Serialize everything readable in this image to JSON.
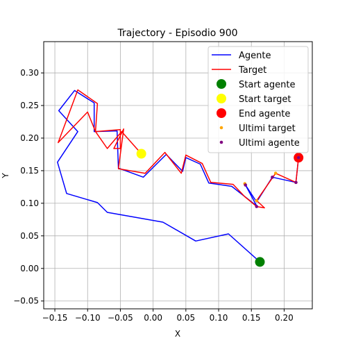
{
  "chart_data": {
    "type": "line",
    "title": "Trajectory - Episodio 900",
    "xlabel": "X",
    "ylabel": "Y",
    "xlim": [
      -0.167,
      0.243
    ],
    "ylim": [
      -0.062,
      0.348
    ],
    "xticks": [
      -0.15,
      -0.1,
      -0.05,
      0.0,
      0.05,
      0.1,
      0.15,
      0.2
    ],
    "xtick_labels": [
      "−0.15",
      "−0.10",
      "−0.05",
      "0.00",
      "0.05",
      "0.10",
      "0.15",
      "0.20"
    ],
    "yticks": [
      -0.05,
      0.0,
      0.05,
      0.1,
      0.15,
      0.2,
      0.25,
      0.3
    ],
    "ytick_labels": [
      "−0.05",
      "0.00",
      "0.05",
      "0.10",
      "0.15",
      "0.20",
      "0.25",
      "0.30"
    ],
    "grid": true,
    "legend_position": "top-right",
    "series": [
      {
        "name": "Agente",
        "kind": "line",
        "color": "#0000ff",
        "x": [
          0.163,
          0.115,
          0.065,
          0.015,
          -0.07,
          -0.085,
          -0.132,
          -0.146,
          -0.115,
          -0.144,
          -0.12,
          -0.09,
          -0.09,
          -0.055,
          -0.053,
          -0.015,
          0.02,
          0.045,
          0.05,
          0.072,
          0.085,
          0.12,
          0.158,
          0.141,
          0.158,
          0.182,
          0.218,
          0.222
        ],
        "y": [
          0.01,
          0.053,
          0.042,
          0.071,
          0.086,
          0.101,
          0.115,
          0.163,
          0.21,
          0.242,
          0.273,
          0.254,
          0.21,
          0.211,
          0.154,
          0.14,
          0.175,
          0.149,
          0.17,
          0.16,
          0.131,
          0.126,
          0.096,
          0.128,
          0.102,
          0.14,
          0.132,
          0.17
        ]
      },
      {
        "name": "Target",
        "kind": "line",
        "color": "#ff0000",
        "x": [
          -0.018,
          -0.048,
          -0.07,
          -0.088,
          -0.1,
          -0.145,
          -0.115,
          -0.085,
          -0.088,
          -0.05,
          -0.05,
          -0.06,
          -0.045,
          -0.053,
          -0.012,
          0.018,
          0.043,
          0.05,
          0.075,
          0.088,
          0.122,
          0.14,
          0.158,
          0.17,
          0.158,
          0.187,
          0.218,
          0.222
        ],
        "y": [
          0.176,
          0.21,
          0.184,
          0.21,
          0.24,
          0.193,
          0.274,
          0.253,
          0.21,
          0.213,
          0.184,
          0.184,
          0.214,
          0.153,
          0.146,
          0.178,
          0.146,
          0.174,
          0.161,
          0.132,
          0.129,
          0.11,
          0.095,
          0.093,
          0.104,
          0.146,
          0.132,
          0.17
        ]
      },
      {
        "name": "Start agente",
        "kind": "point",
        "color": "#008000",
        "x": [
          0.163
        ],
        "y": [
          0.01
        ]
      },
      {
        "name": "Start target",
        "kind": "point",
        "color": "#ffff00",
        "x": [
          -0.018
        ],
        "y": [
          0.176
        ]
      },
      {
        "name": "End agente",
        "kind": "point",
        "color": "#ff0000",
        "x": [
          0.222
        ],
        "y": [
          0.17
        ]
      },
      {
        "name": "Ultimi target",
        "kind": "scatter",
        "color": "#ffa500",
        "x": [
          0.14,
          0.158,
          0.187,
          0.218,
          0.222
        ],
        "y": [
          0.13,
          0.104,
          0.146,
          0.132,
          0.17
        ]
      },
      {
        "name": "Ultimi agente",
        "kind": "scatter",
        "color": "#800080",
        "x": [
          0.141,
          0.158,
          0.182,
          0.218,
          0.222
        ],
        "y": [
          0.128,
          0.095,
          0.14,
          0.132,
          0.17
        ]
      }
    ]
  }
}
